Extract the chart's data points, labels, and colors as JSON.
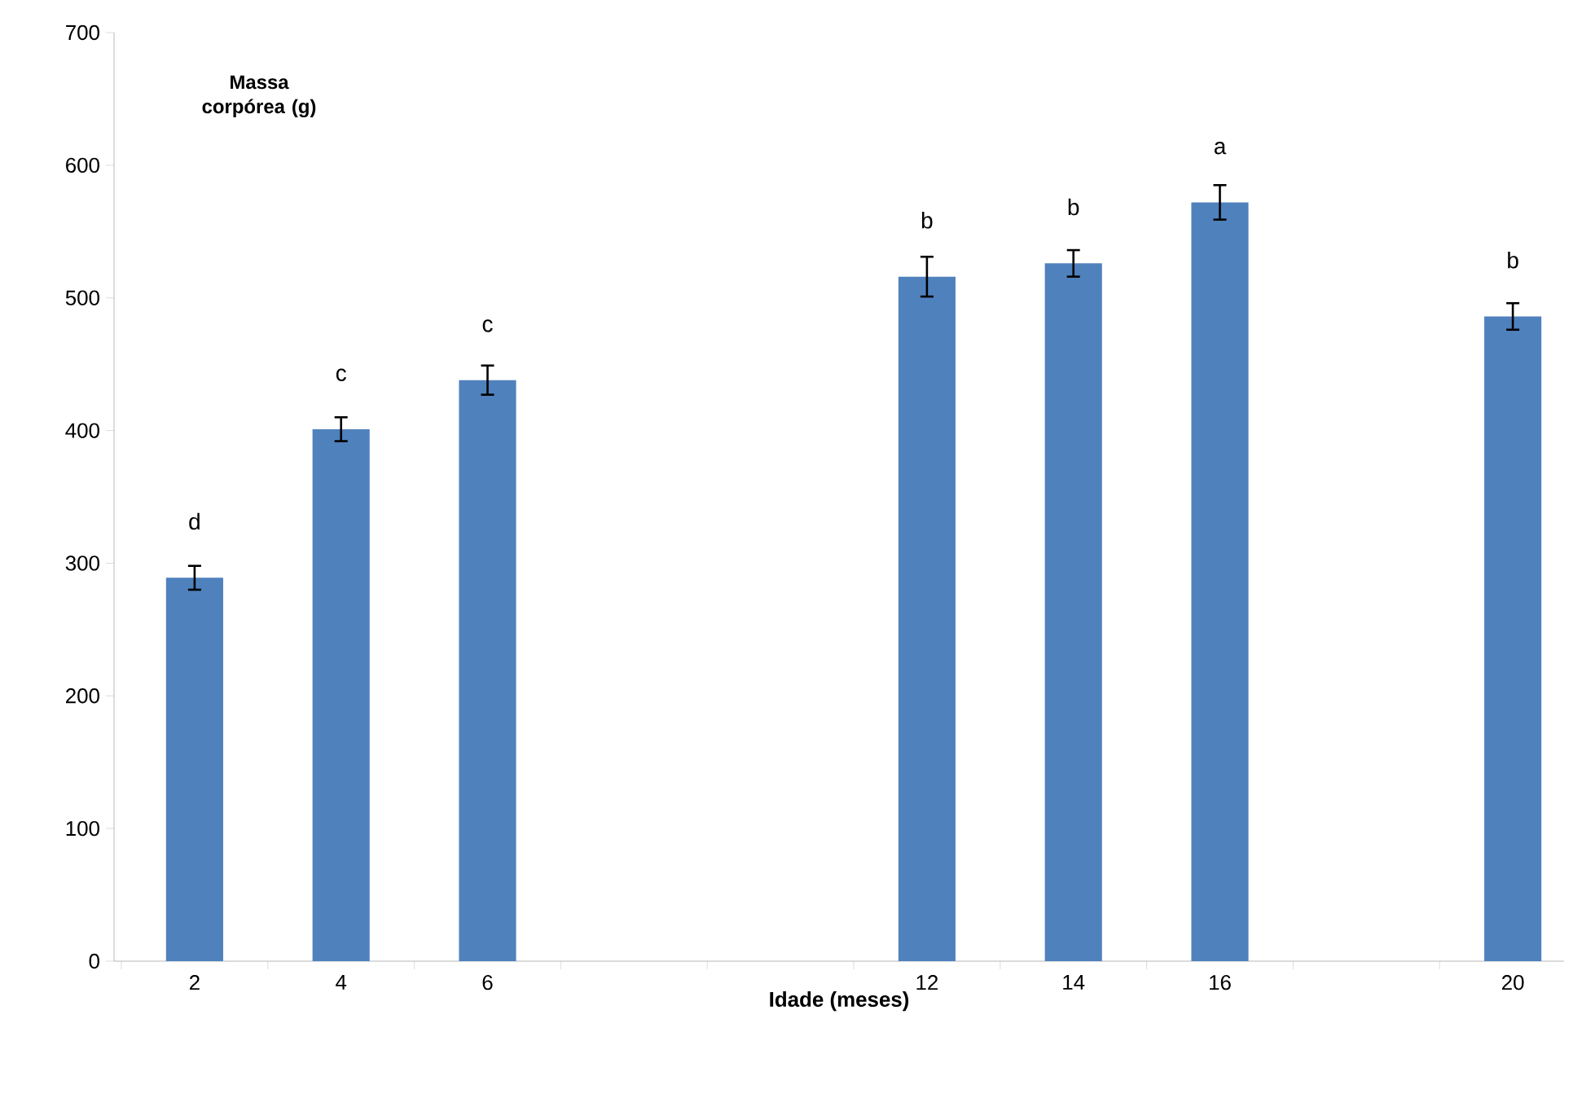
{
  "chart_data": {
    "type": "bar",
    "xlabel": "Idade (meses)",
    "ylabel": "Massa corpórea (g)",
    "categories": [
      "2",
      "4",
      "6",
      null,
      null,
      "12",
      "14",
      "16",
      null,
      "20"
    ],
    "values": [
      289,
      401,
      438,
      null,
      null,
      516,
      526,
      572,
      null,
      486
    ],
    "errors": [
      9,
      9,
      11,
      null,
      null,
      15,
      10,
      13,
      null,
      10
    ],
    "color": "#4f81bd",
    "ylim": [
      0,
      700
    ],
    "yticks": [
      0,
      100,
      200,
      300,
      400,
      500,
      600,
      700
    ],
    "grid": false,
    "annotations": [
      {
        "text": "d",
        "x": "2",
        "y": 289
      },
      {
        "text": "c",
        "x": "4",
        "y": 401
      },
      {
        "text": "c",
        "x": "6",
        "y": 438
      },
      {
        "text": "b",
        "x": "12",
        "y": 516
      },
      {
        "text": "b",
        "x": "14",
        "y": 526
      },
      {
        "text": "a",
        "x": "16",
        "y": 572
      },
      {
        "text": "b",
        "x": "20",
        "y": 486
      }
    ]
  }
}
